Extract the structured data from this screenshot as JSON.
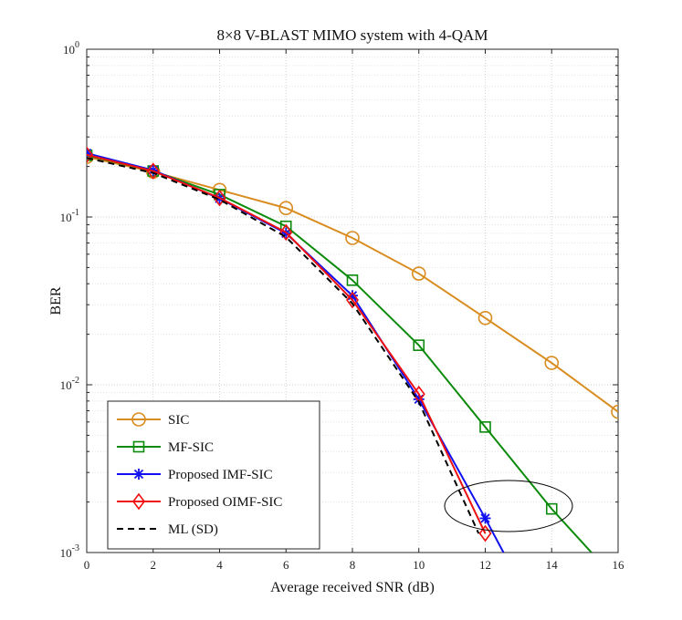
{
  "chart_data": {
    "type": "line",
    "title": "8×8 V-BLAST MIMO system with 4-QAM",
    "xlabel": "Average received SNR (dB)",
    "ylabel": "BER",
    "yscale": "log",
    "xlim": [
      0,
      16
    ],
    "ylim": [
      0.001,
      1
    ],
    "xticks": [
      0,
      2,
      4,
      6,
      8,
      10,
      12,
      14,
      16
    ],
    "yticks": [
      {
        "value": 1,
        "base": "10",
        "exp": "0"
      },
      {
        "value": 0.1,
        "base": "10",
        "exp": "-1"
      },
      {
        "value": 0.01,
        "base": "10",
        "exp": "-2"
      },
      {
        "value": 0.001,
        "base": "10",
        "exp": "-3"
      }
    ],
    "grid": true,
    "legend_position": "bottom-left",
    "series": [
      {
        "name": "SIC",
        "color": "#D98C1F",
        "marker": "circle",
        "dash": "solid",
        "x": [
          0,
          2,
          4,
          6,
          8,
          10,
          12,
          14,
          16
        ],
        "y": [
          0.228,
          0.186,
          0.145,
          0.113,
          0.075,
          0.046,
          0.025,
          0.0135,
          0.0069
        ]
      },
      {
        "name": "MF-SIC",
        "color": "#0B8A0B",
        "marker": "square",
        "dash": "solid",
        "x": [
          0,
          2,
          4,
          6,
          8,
          10,
          12,
          14,
          15.2
        ],
        "y": [
          0.233,
          0.188,
          0.136,
          0.088,
          0.042,
          0.0172,
          0.0056,
          0.00182,
          0.001
        ],
        "marker_count": 8
      },
      {
        "name": "Proposed IMF-SIC",
        "color": "#1010F0",
        "marker": "asterisk",
        "dash": "solid",
        "x": [
          0,
          2,
          4,
          6,
          8,
          10,
          12,
          12.55
        ],
        "y": [
          0.24,
          0.19,
          0.129,
          0.08,
          0.034,
          0.0082,
          0.0016,
          0.001
        ],
        "marker_count": 7
      },
      {
        "name": "Proposed OIMF-SIC",
        "color": "#F01010",
        "marker": "diamond",
        "dash": "solid",
        "x": [
          0,
          2,
          4,
          6,
          8,
          10,
          12
        ],
        "y": [
          0.235,
          0.188,
          0.13,
          0.081,
          0.032,
          0.0088,
          0.0013
        ]
      },
      {
        "name": "ML (SD)",
        "color": "#000000",
        "marker": "none",
        "dash": "dashed",
        "x": [
          0,
          2,
          4,
          6,
          8,
          10,
          11.8
        ],
        "y": [
          0.225,
          0.183,
          0.127,
          0.076,
          0.0305,
          0.0079,
          0.0013
        ]
      }
    ]
  }
}
